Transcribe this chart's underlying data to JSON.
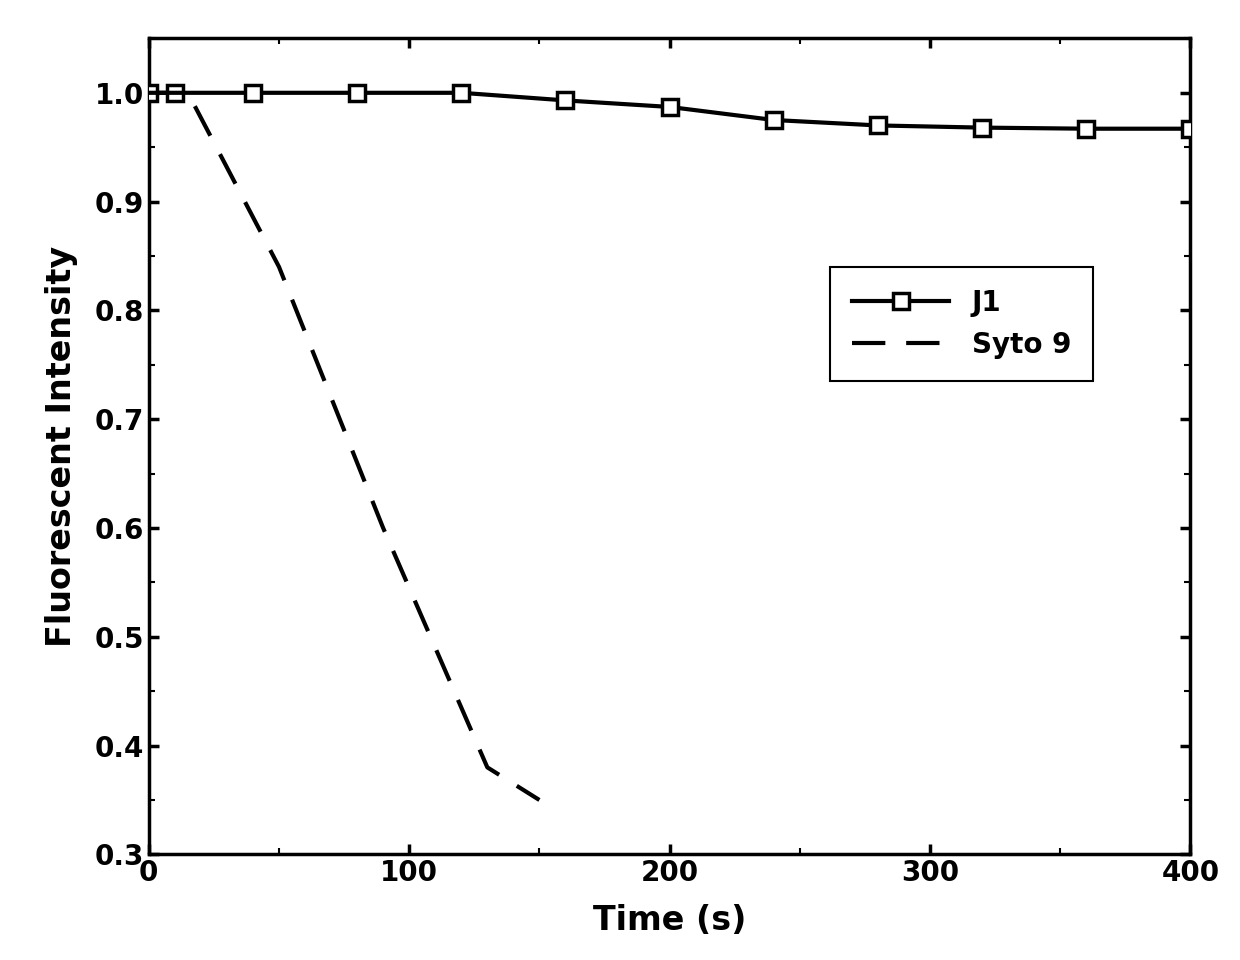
{
  "j1_x": [
    0,
    10,
    40,
    80,
    120,
    160,
    200,
    240,
    280,
    320,
    360,
    400
  ],
  "j1_y": [
    1.0,
    1.0,
    1.0,
    1.0,
    1.0,
    0.993,
    0.987,
    0.975,
    0.97,
    0.968,
    0.967,
    0.967
  ],
  "syto9_x": [
    0,
    15,
    50,
    90,
    130,
    150
  ],
  "syto9_y": [
    1.0,
    1.0,
    0.84,
    0.6,
    0.38,
    0.35
  ],
  "xlabel": "Time (s)",
  "ylabel": "Fluorescent Intensity",
  "xlim": [
    0,
    400
  ],
  "ylim": [
    0.3,
    1.05
  ],
  "xticks": [
    0,
    100,
    200,
    300,
    400
  ],
  "yticks": [
    0.3,
    0.4,
    0.5,
    0.6,
    0.7,
    0.8,
    0.9,
    1.0
  ],
  "j1_label": "J1",
  "syto9_label": "Syto 9",
  "line_color": "#000000",
  "background_color": "#ffffff",
  "legend_fontsize": 20,
  "axis_fontsize": 24,
  "tick_fontsize": 20
}
